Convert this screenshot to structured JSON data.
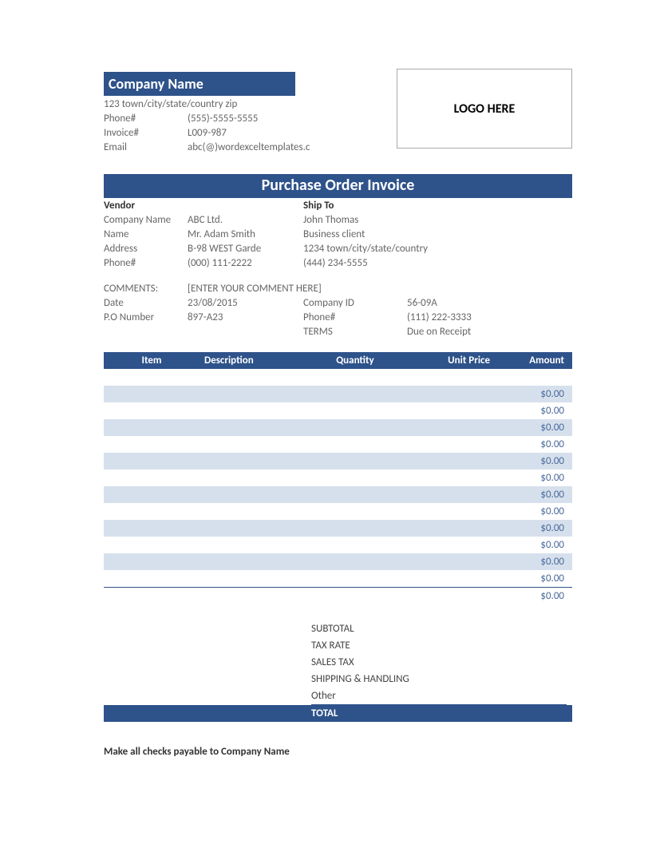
{
  "colors": {
    "primary": "#2e528a",
    "band": "#d6e0ed",
    "text": "#444444",
    "muted": "#666666",
    "amount": "#4a6a9a",
    "background": "#ffffff"
  },
  "header": {
    "company_name": "Company Name",
    "address": "123 town/city/state/country zip",
    "phone_label": "Phone#",
    "phone": "(555)-5555-5555",
    "invoice_label": "Invoice#",
    "invoice": "L009-987",
    "email_label": "Email",
    "email": "abc(@)wordexceltemplates.c",
    "logo_text": "LOGO HERE"
  },
  "title": "Purchase Order Invoice",
  "vendor": {
    "heading": "Vendor",
    "company_label": "Company Name",
    "company": "ABC Ltd.",
    "name_label": "Name",
    "name": "Mr. Adam Smith",
    "address_label": "Address",
    "address": "B-98 WEST Garde",
    "phone_label": "Phone#",
    "phone": "(000) 111-2222"
  },
  "shipto": {
    "heading": "Ship To",
    "name": "John Thomas",
    "type": "Business client",
    "address": "1234 town/city/state/country",
    "phone": "(444) 234-5555"
  },
  "comments": {
    "label": "COMMENTS:",
    "value": "[ENTER YOUR COMMENT HERE]"
  },
  "meta": {
    "date_label": "Date",
    "date": "23/08/2015",
    "po_label": "P.O Number",
    "po": "897-A23",
    "company_id_label": "Company ID",
    "company_id": "56-09A",
    "phone_label": "Phone#",
    "phone": "(111) 222-3333",
    "terms_label": "TERMS",
    "terms": "Due on Receipt"
  },
  "table": {
    "headers": {
      "item": "Item",
      "description": "Description",
      "quantity": "Quantity",
      "unit_price": "Unit Price",
      "amount": "Amount"
    },
    "rows": [
      {
        "amount": "",
        "band": false
      },
      {
        "amount": "$0.00",
        "band": true
      },
      {
        "amount": "$0.00",
        "band": false
      },
      {
        "amount": "$0.00",
        "band": true
      },
      {
        "amount": "$0.00",
        "band": false
      },
      {
        "amount": "$0.00",
        "band": true
      },
      {
        "amount": "$0.00",
        "band": false
      },
      {
        "amount": "$0.00",
        "band": true
      },
      {
        "amount": "$0.00",
        "band": false
      },
      {
        "amount": "$0.00",
        "band": true
      },
      {
        "amount": "$0.00",
        "band": false
      },
      {
        "amount": "$0.00",
        "band": true
      },
      {
        "amount": "$0.00",
        "band": false
      }
    ],
    "final_amount": "$0.00"
  },
  "totals": {
    "subtotal": "SUBTOTAL",
    "tax_rate": "TAX RATE",
    "sales_tax": "SALES TAX",
    "shipping": "SHIPPING & HANDLING",
    "other": "Other",
    "total": "TOTAL"
  },
  "footer": "Make all checks payable to Company Name"
}
